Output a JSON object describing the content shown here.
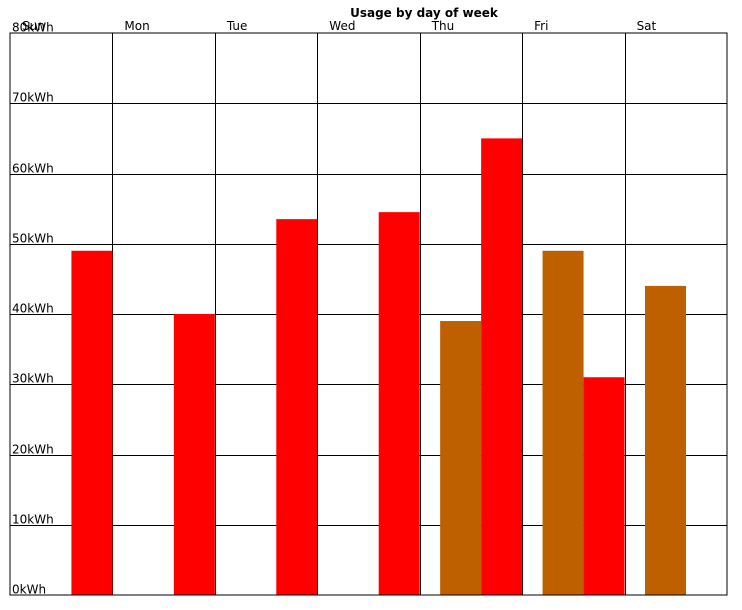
{
  "chart_data": {
    "type": "bar",
    "title": "Usage by day of week",
    "xlabel": "",
    "ylabel": "",
    "categories": [
      "Sun",
      "Mon",
      "Tue",
      "Wed",
      "Thu",
      "Fri",
      "Sat"
    ],
    "y_tick_labels": [
      "0kWh",
      "10kWh",
      "20kWh",
      "30kWh",
      "40kWh",
      "50kWh",
      "60kWh",
      "70kWh",
      "80kWh"
    ],
    "ylim": [
      0,
      80
    ],
    "y_tick_step": 10,
    "grid": true,
    "x_axis_position": "top",
    "series": [
      {
        "color": "#bf6000",
        "values": [
          null,
          null,
          null,
          null,
          39,
          49,
          44
        ]
      },
      {
        "color": "#ff0000",
        "values": [
          49,
          40,
          53.5,
          54.5,
          65,
          31,
          null
        ]
      }
    ]
  }
}
